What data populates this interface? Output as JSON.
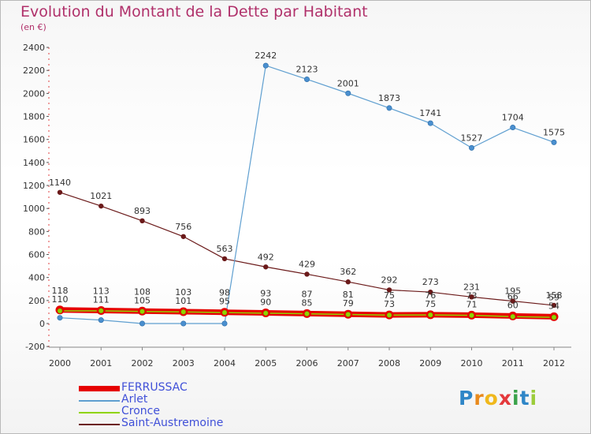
{
  "title": "Evolution du Montant de la Dette par Habitant",
  "subtitle": "(en €)",
  "chart_data": {
    "type": "line",
    "x": [
      "2000",
      "2001",
      "2002",
      "2003",
      "2004",
      "2005",
      "2006",
      "2007",
      "2008",
      "2009",
      "2010",
      "2011",
      "2012"
    ],
    "ylim": [
      -200,
      2400
    ],
    "yticks": [
      -200,
      0,
      200,
      400,
      600,
      800,
      1000,
      1200,
      1400,
      1600,
      1800,
      2000,
      2200,
      2400
    ],
    "grid": false,
    "legend_position": "bottom-left",
    "series": [
      {
        "name": "FERRUSSAC",
        "color": "#e60000",
        "values": [
          118,
          113,
          108,
          103,
          98,
          93,
          87,
          81,
          75,
          76,
          73,
          66,
          59
        ]
      },
      {
        "name": "Arlet",
        "color": "#5f9fd0",
        "values": [
          50,
          30,
          0,
          0,
          0,
          2242,
          2123,
          2001,
          1873,
          1741,
          1527,
          1704,
          1575
        ]
      },
      {
        "name": "Cronce",
        "color": "#8fd400",
        "values": [
          110,
          111,
          105,
          101,
          95,
          90,
          85,
          79,
          73,
          75,
          71,
          60,
          54
        ]
      },
      {
        "name": "Saint-Austremoine",
        "color": "#6b1a1a",
        "values": [
          1140,
          1021,
          893,
          756,
          563,
          492,
          429,
          362,
          292,
          273,
          231,
          195,
          158
        ]
      }
    ],
    "data_labels": {
      "Saint-Austremoine": [
        "1140",
        "1021",
        "893",
        "756",
        "563",
        "492",
        "429",
        "362",
        "292",
        "273",
        "231",
        "195",
        "158"
      ],
      "Arlet": [
        "",
        "",
        "",
        "",
        "",
        "2242",
        "2123",
        "2001",
        "1873",
        "1741",
        "1527",
        "1704",
        "1575"
      ],
      "FERRUSSAC": [
        "118",
        "113",
        "108",
        "103",
        "98",
        "93",
        "87",
        "81",
        "75",
        "76",
        "73",
        "66",
        "59"
      ],
      "Cronce": [
        "110",
        "111",
        "105",
        "101",
        "95",
        "90",
        "85",
        "79",
        "73",
        "75",
        "71",
        "60",
        "54"
      ]
    }
  },
  "logo": {
    "letters": [
      {
        "ch": "P",
        "color": "#2f86c7"
      },
      {
        "ch": "r",
        "color": "#e98a1d"
      },
      {
        "ch": "o",
        "color": "#f0b81c"
      },
      {
        "ch": "x",
        "color": "#e4393c"
      },
      {
        "ch": "i",
        "color": "#3aa24a"
      },
      {
        "ch": "t",
        "color": "#2f86c7"
      },
      {
        "ch": "i",
        "color": "#9ccc3a"
      }
    ]
  }
}
